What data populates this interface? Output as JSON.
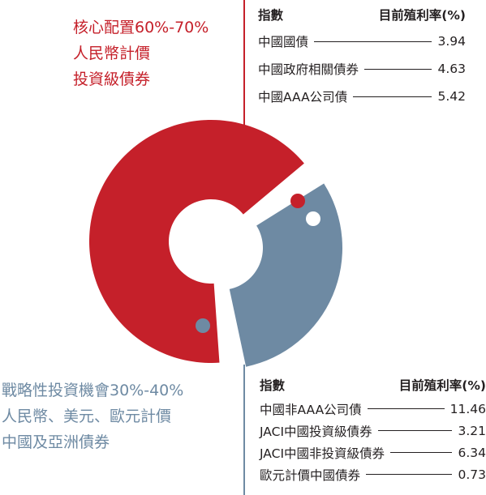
{
  "colors": {
    "red": "#c5202a",
    "blue": "#6e8aa3",
    "text": "#231f20"
  },
  "chart_data": {
    "type": "pie",
    "title": "",
    "slices": [
      {
        "label": "核心配置60%-70%",
        "value": 65,
        "color": "#c5202a"
      },
      {
        "label": "戰略性投資機會30%-40%",
        "value": 35,
        "color": "#6e8aa3"
      }
    ]
  },
  "segments": {
    "red": {
      "lines": [
        "核心配置60%-70%",
        "人民幣計價",
        "投資級債券"
      ]
    },
    "blue": {
      "lines": [
        "戰略性投資機會30%-40%",
        "人民幣、美元、歐元計價",
        "中國及亞洲債券"
      ]
    }
  },
  "tables": {
    "top": {
      "header_index": "指數",
      "header_yield": "目前殖利率(%)",
      "rows": [
        {
          "name": "中國國債",
          "value": "3.94"
        },
        {
          "name": "中國政府相關債券",
          "value": "4.63"
        },
        {
          "name": "中國AAA公司債",
          "value": "5.42"
        }
      ]
    },
    "bottom": {
      "header_index": "指數",
      "header_yield": "目前殖利率(%)",
      "rows": [
        {
          "name": "中國非AAA公司債",
          "value": "11.46"
        },
        {
          "name": "JACI中國投資級債券",
          "value": "3.21"
        },
        {
          "name": "JACI中國非投資級債券",
          "value": "6.34"
        },
        {
          "name": "歐元計價中國債券",
          "value": "0.73"
        }
      ]
    }
  }
}
